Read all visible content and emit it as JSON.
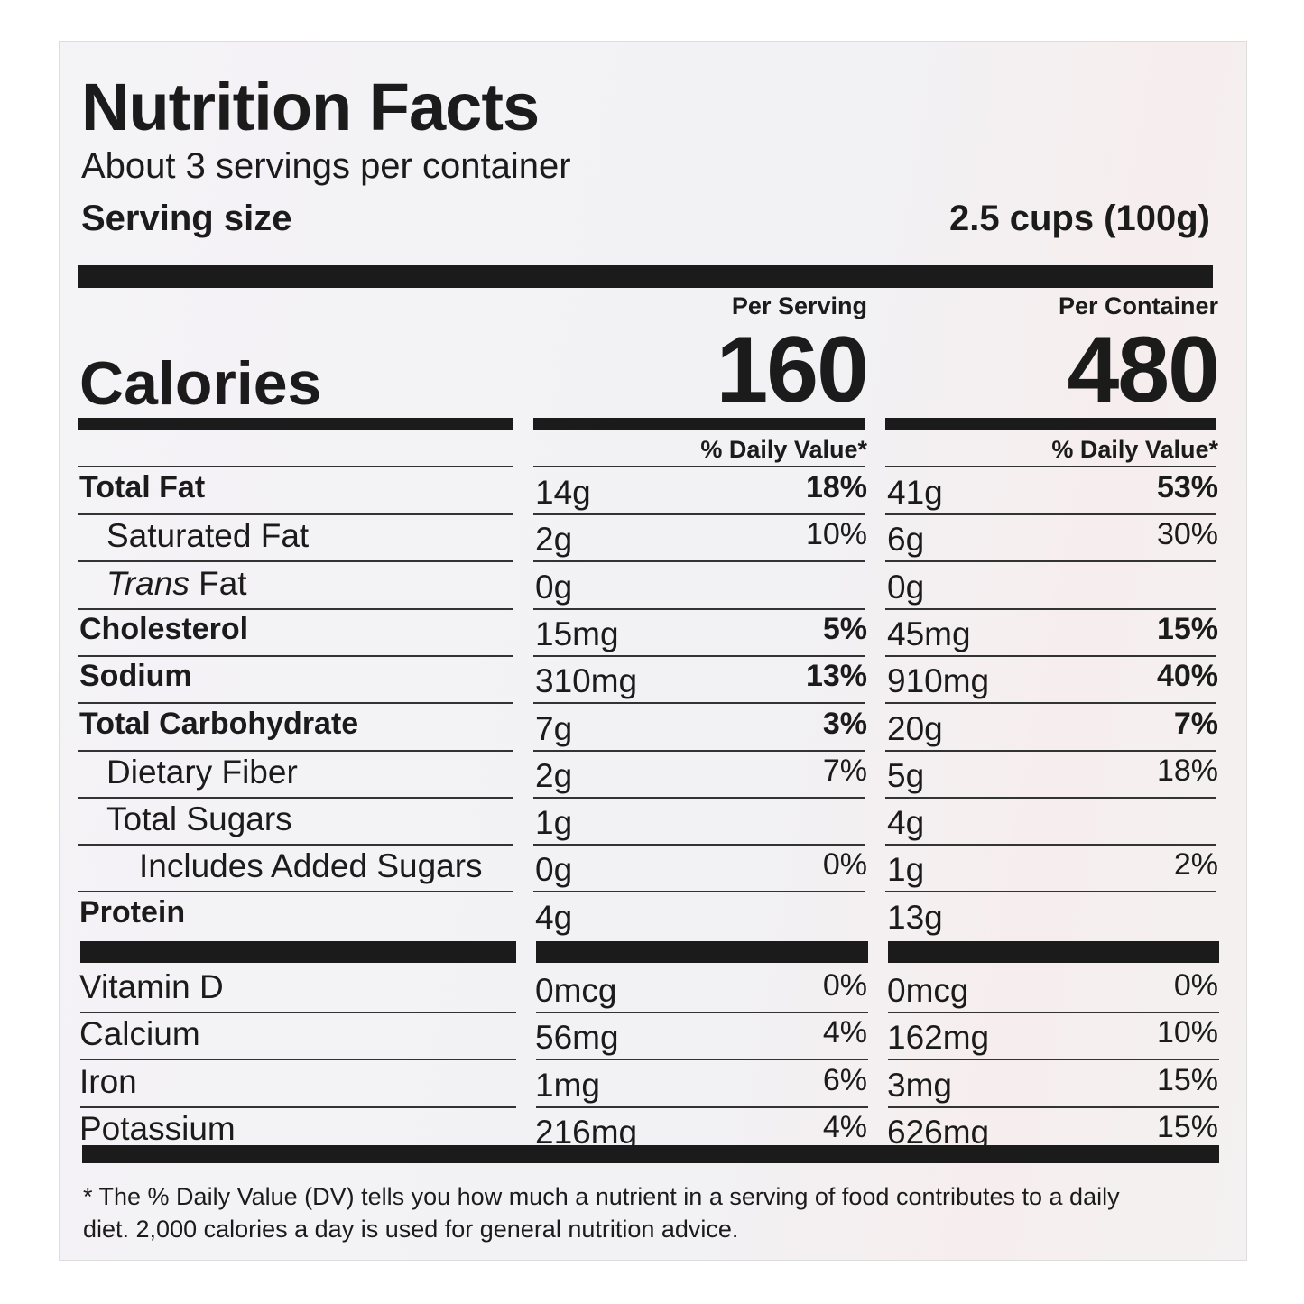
{
  "title": "Nutrition Facts",
  "servings": "About 3 servings per container",
  "serving_size": {
    "label": "Serving size",
    "value": "2.5 cups (100g)"
  },
  "calories_label": "Calories",
  "columns": [
    {
      "heading": "Per Serving",
      "calories": "160",
      "dv_heading": "% Daily Value*"
    },
    {
      "heading": "Per Container",
      "calories": "480",
      "dv_heading": "% Daily Value*"
    }
  ],
  "nutrients": [
    {
      "name": "Total Fat",
      "level": 0,
      "values": [
        {
          "amount": "14g",
          "dv": "18%"
        },
        {
          "amount": "41g",
          "dv": "53%"
        }
      ]
    },
    {
      "name": "Saturated Fat",
      "level": 1,
      "values": [
        {
          "amount": "2g",
          "dv": "10%"
        },
        {
          "amount": "6g",
          "dv": "30%"
        }
      ]
    },
    {
      "name_italic": "Trans",
      "name": "Fat",
      "level": 1,
      "values": [
        {
          "amount": "0g",
          "dv": null
        },
        {
          "amount": "0g",
          "dv": null
        }
      ]
    },
    {
      "name": "Cholesterol",
      "level": 0,
      "values": [
        {
          "amount": "15mg",
          "dv": "5%"
        },
        {
          "amount": "45mg",
          "dv": "15%"
        }
      ]
    },
    {
      "name": "Sodium",
      "level": 0,
      "values": [
        {
          "amount": "310mg",
          "dv": "13%"
        },
        {
          "amount": "910mg",
          "dv": "40%"
        }
      ]
    },
    {
      "name": "Total Carbohydrate",
      "level": 0,
      "values": [
        {
          "amount": "7g",
          "dv": "3%"
        },
        {
          "amount": "20g",
          "dv": "7%"
        }
      ]
    },
    {
      "name": "Dietary Fiber",
      "level": 1,
      "values": [
        {
          "amount": "2g",
          "dv": "7%"
        },
        {
          "amount": "5g",
          "dv": "18%"
        }
      ]
    },
    {
      "name": "Total Sugars",
      "level": 1,
      "values": [
        {
          "amount": "1g",
          "dv": null
        },
        {
          "amount": "4g",
          "dv": null
        }
      ]
    },
    {
      "name": "Includes Added Sugars",
      "level": 2,
      "values": [
        {
          "amount": "0g",
          "dv": "0%"
        },
        {
          "amount": "1g",
          "dv": "2%"
        }
      ]
    },
    {
      "name": "Protein",
      "level": 0,
      "values": [
        {
          "amount": "4g",
          "dv": null
        },
        {
          "amount": "13g",
          "dv": null
        }
      ]
    }
  ],
  "vitamins": [
    {
      "name": "Vitamin D",
      "values": [
        {
          "amount": "0mcg",
          "dv": "0%"
        },
        {
          "amount": "0mcg",
          "dv": "0%"
        }
      ]
    },
    {
      "name": "Calcium",
      "values": [
        {
          "amount": "56mg",
          "dv": "4%"
        },
        {
          "amount": "162mg",
          "dv": "10%"
        }
      ]
    },
    {
      "name": "Iron",
      "values": [
        {
          "amount": "1mg",
          "dv": "6%"
        },
        {
          "amount": "3mg",
          "dv": "15%"
        }
      ]
    },
    {
      "name": "Potassium",
      "values": [
        {
          "amount": "216mg",
          "dv": "4%"
        },
        {
          "amount": "626mg",
          "dv": "15%"
        }
      ]
    }
  ],
  "footnote": "* The % Daily Value (DV) tells you how much a nutrient in a serving of food contributes to a daily diet. 2,000 calories a day is used for general nutrition advice."
}
